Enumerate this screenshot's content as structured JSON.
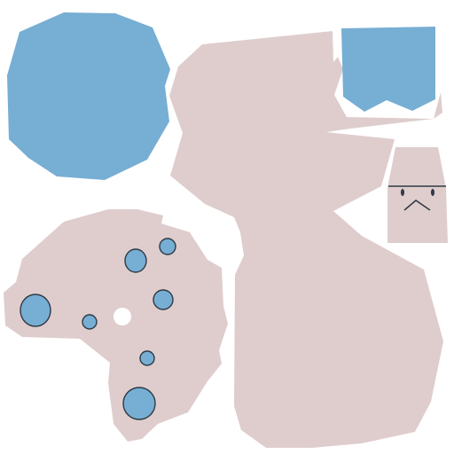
{
  "palette": {
    "background": "#ffffff",
    "pink": "#dfcdcd",
    "blue": "#77aed4",
    "outline": "#2e3a44",
    "hole": "#ffffff"
  },
  "islands": {
    "large_blue_blob": "blue",
    "blue_pocket": "blue",
    "large_pink_island": "pink",
    "pink_head": "pink",
    "spotted_pink_island": "pink"
  },
  "spots": {
    "count": 8,
    "fill": "blue",
    "outlined": true
  },
  "face": {
    "eyes": 2,
    "mouth": "chevron"
  }
}
